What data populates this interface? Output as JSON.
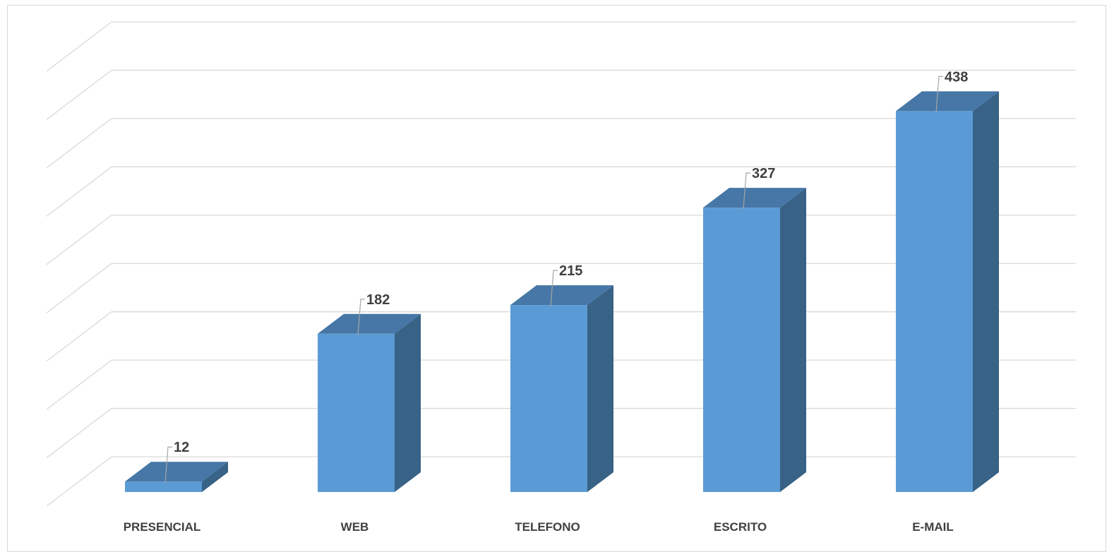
{
  "chart_data": {
    "type": "bar",
    "style": "3d-column",
    "categories": [
      "PRESENCIAL",
      "WEB",
      "TELEFONO",
      "ESCRITO",
      "E-MAIL"
    ],
    "values": [
      12,
      182,
      215,
      327,
      438
    ],
    "title": "",
    "xlabel": "",
    "ylabel": "",
    "ylim": [
      0,
      500
    ],
    "grid": true,
    "legend": "none",
    "data_labels": true,
    "colors": {
      "front": "#5b9bd5",
      "top": "#4677a6",
      "side": "#386286",
      "grid": "#d9d9d9",
      "text": "#404040"
    }
  }
}
